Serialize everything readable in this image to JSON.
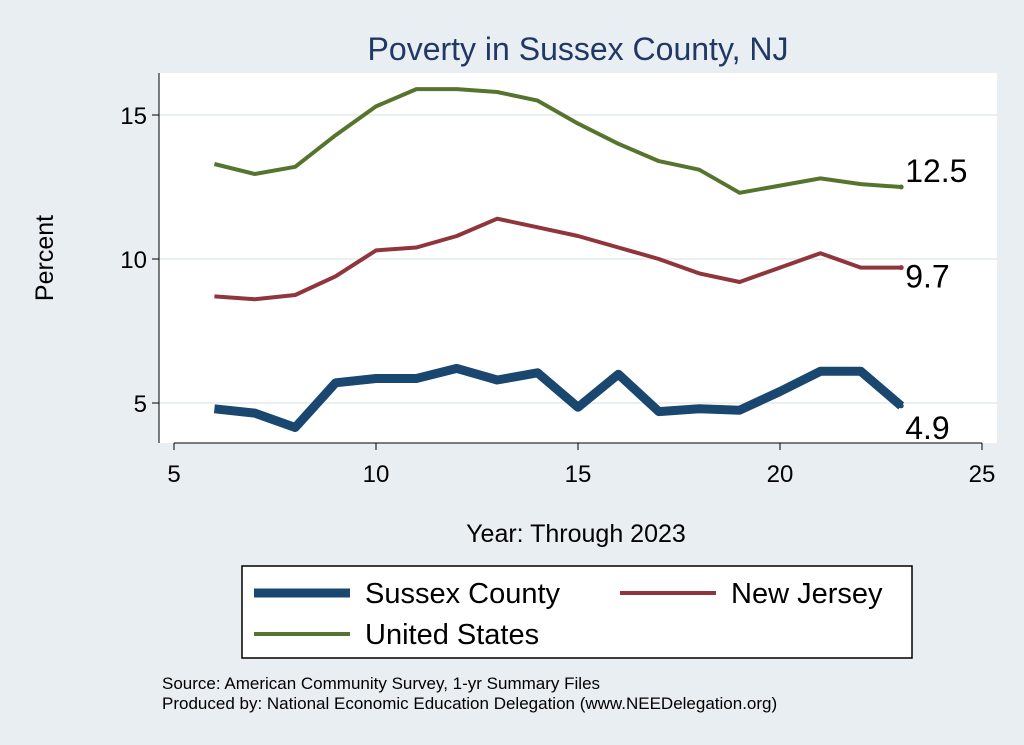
{
  "chart_data": {
    "type": "line",
    "title": "Poverty in Sussex County, NJ",
    "xlabel": "Year: Through 2023",
    "ylabel": "Percent",
    "xlim": [
      5,
      25
    ],
    "xticks": [
      5,
      10,
      15,
      20,
      25
    ],
    "ylim": [
      3.7,
      16.3
    ],
    "yticks": [
      5,
      10,
      15
    ],
    "grid": true,
    "legend_position": "bottom",
    "series": [
      {
        "name": "Sussex County",
        "color": "#1a476f",
        "x": [
          6,
          7,
          8,
          9,
          10,
          11,
          12,
          13,
          14,
          15,
          16,
          17,
          18,
          19,
          20,
          21,
          22,
          23
        ],
        "values": [
          4.8,
          4.65,
          4.15,
          5.7,
          5.85,
          5.85,
          6.2,
          5.8,
          6.05,
          4.85,
          6.0,
          4.7,
          4.8,
          4.75,
          5.4,
          6.1,
          6.1,
          4.9
        ],
        "end_label": "4.9",
        "line_width": 9
      },
      {
        "name": "United States",
        "color": "#55752f",
        "x": [
          6,
          7,
          8,
          9,
          10,
          11,
          12,
          13,
          14,
          15,
          16,
          17,
          18,
          19,
          20,
          21,
          22,
          23
        ],
        "values": [
          13.3,
          12.95,
          13.2,
          14.3,
          15.3,
          15.9,
          15.9,
          15.8,
          15.5,
          14.7,
          14.0,
          13.4,
          13.1,
          12.3,
          12.55,
          12.8,
          12.6,
          12.5
        ],
        "end_label": "12.5",
        "line_width": 4
      },
      {
        "name": "New Jersey",
        "color": "#90353b",
        "x": [
          6,
          7,
          8,
          9,
          10,
          11,
          12,
          13,
          14,
          15,
          16,
          17,
          18,
          19,
          20,
          21,
          22,
          23
        ],
        "values": [
          8.7,
          8.6,
          8.75,
          9.4,
          10.3,
          10.4,
          10.8,
          11.4,
          11.1,
          10.8,
          10.4,
          10.0,
          9.5,
          9.2,
          9.7,
          10.2,
          9.7,
          9.7
        ],
        "end_label": "9.7",
        "line_width": 4
      }
    ]
  },
  "notes": {
    "source": "Source: American Community Survey, 1-yr Summary Files",
    "produced_by": "Produced by: National Economic Education Delegation (www.NEEDelegation.org)"
  }
}
